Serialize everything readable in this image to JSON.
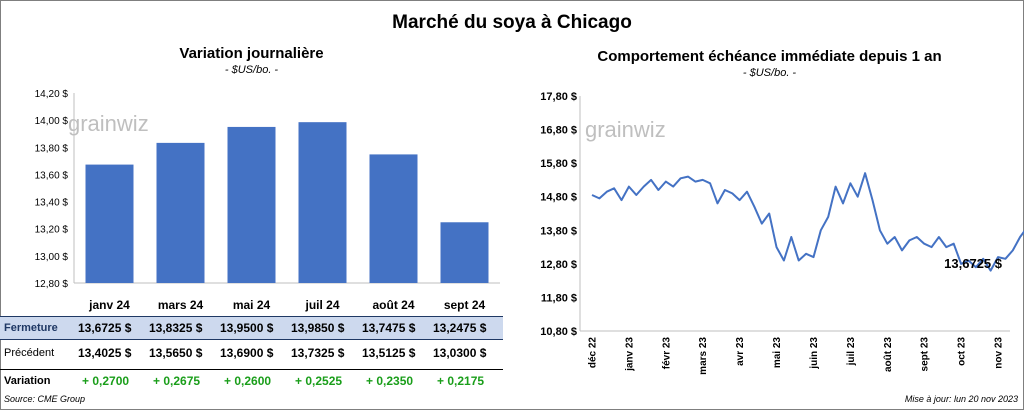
{
  "title": "Marché du soya à Chicago",
  "watermark": "grainwiz",
  "left_chart": {
    "title": "Variation  journalière",
    "units": "- $US/bo. -",
    "y_ticks": [
      "14,20 $",
      "14,00 $",
      "13,80 $",
      "13,60 $",
      "13,40 $",
      "13,20 $",
      "13,00 $",
      "12,80 $"
    ]
  },
  "right_chart": {
    "title": "Comportement  échéance immédiate depuis 1 an",
    "units": "- $US/bo. -",
    "y_ticks": [
      "17,80 $",
      "16,80 $",
      "15,80 $",
      "14,80 $",
      "13,80 $",
      "12,80 $",
      "11,80 $",
      "10,80 $"
    ],
    "x_ticks": [
      "déc 22",
      "janv 23",
      "févr 23",
      "mars 23",
      "avr 23",
      "mai 23",
      "juin 23",
      "juil 23",
      "août 23",
      "sept 23",
      "oct 23",
      "nov 23"
    ],
    "last_label": "13,6725 $"
  },
  "table": {
    "rows": [
      {
        "label": "Fermeture",
        "values": [
          "13,6725  $",
          "13,8325  $",
          "13,9500  $",
          "13,9850  $",
          "13,7475  $",
          "13,2475  $"
        ]
      },
      {
        "label": "Précédent",
        "values": [
          "13,4025  $",
          "13,5650  $",
          "13,6900  $",
          "13,7325  $",
          "13,5125  $",
          "13,0300  $"
        ]
      },
      {
        "label": "Variation",
        "values": [
          "+ 0,2700",
          "+ 0,2675",
          "+ 0,2600",
          "+ 0,2525",
          "+ 0,2350",
          "+ 0,2175"
        ]
      }
    ]
  },
  "footer": {
    "source": "Source: CME Group",
    "update": "Mise à jour: lun 20 nov 2023"
  },
  "colors": {
    "bar": "#4472c4",
    "line": "#4472c4",
    "variation": "#1a9e1a",
    "header_row": "#cdd9ee"
  },
  "chart_data": [
    {
      "type": "bar",
      "title": "Variation  journalière",
      "ylabel": "- $US/bo. -",
      "categories": [
        "janv 24",
        "mars 24",
        "mai 24",
        "juil 24",
        "août 24",
        "sept 24"
      ],
      "values": [
        13.6725,
        13.8325,
        13.95,
        13.985,
        13.7475,
        13.2475
      ],
      "ylim": [
        12.8,
        14.2
      ],
      "grid": false
    },
    {
      "type": "line",
      "title": "Comportement  échéance immédiate depuis 1 an",
      "ylabel": "- $US/bo. -",
      "ylim": [
        10.8,
        17.8
      ],
      "x_categories": [
        "déc 22",
        "janv 23",
        "févr 23",
        "mars 23",
        "avr 23",
        "mai 23",
        "juin 23",
        "juil 23",
        "août 23",
        "sept 23",
        "oct 23",
        "nov 23"
      ],
      "x": [
        0,
        0.2,
        0.4,
        0.6,
        0.8,
        1.0,
        1.2,
        1.4,
        1.6,
        1.8,
        2.0,
        2.2,
        2.4,
        2.6,
        2.8,
        3.0,
        3.2,
        3.4,
        3.6,
        3.8,
        4.0,
        4.2,
        4.4,
        4.6,
        4.8,
        5.0,
        5.2,
        5.4,
        5.6,
        5.8,
        6.0,
        6.2,
        6.4,
        6.6,
        6.8,
        7.0,
        7.2,
        7.4,
        7.6,
        7.8,
        8.0,
        8.2,
        8.4,
        8.6,
        8.8,
        9.0,
        9.2,
        9.4,
        9.6,
        9.8,
        10.0,
        10.2,
        10.4,
        10.6,
        10.8,
        11.0,
        11.2,
        11.4,
        11.6,
        11.8,
        12.0
      ],
      "y": [
        14.85,
        14.75,
        14.95,
        15.05,
        14.7,
        15.1,
        14.85,
        15.1,
        15.3,
        15.0,
        15.25,
        15.1,
        15.35,
        15.4,
        15.25,
        15.3,
        15.2,
        14.6,
        15.0,
        14.9,
        14.7,
        14.95,
        14.5,
        14.0,
        14.3,
        13.3,
        12.9,
        13.6,
        12.9,
        13.1,
        13.0,
        13.8,
        14.2,
        15.1,
        14.6,
        15.2,
        14.8,
        15.5,
        14.7,
        13.8,
        13.4,
        13.6,
        13.2,
        13.5,
        13.6,
        13.4,
        13.3,
        13.6,
        13.3,
        13.4,
        12.8,
        12.9,
        12.7,
        12.95,
        12.6,
        13.0,
        12.95,
        13.2,
        13.6,
        13.9,
        13.6725
      ]
    }
  ]
}
